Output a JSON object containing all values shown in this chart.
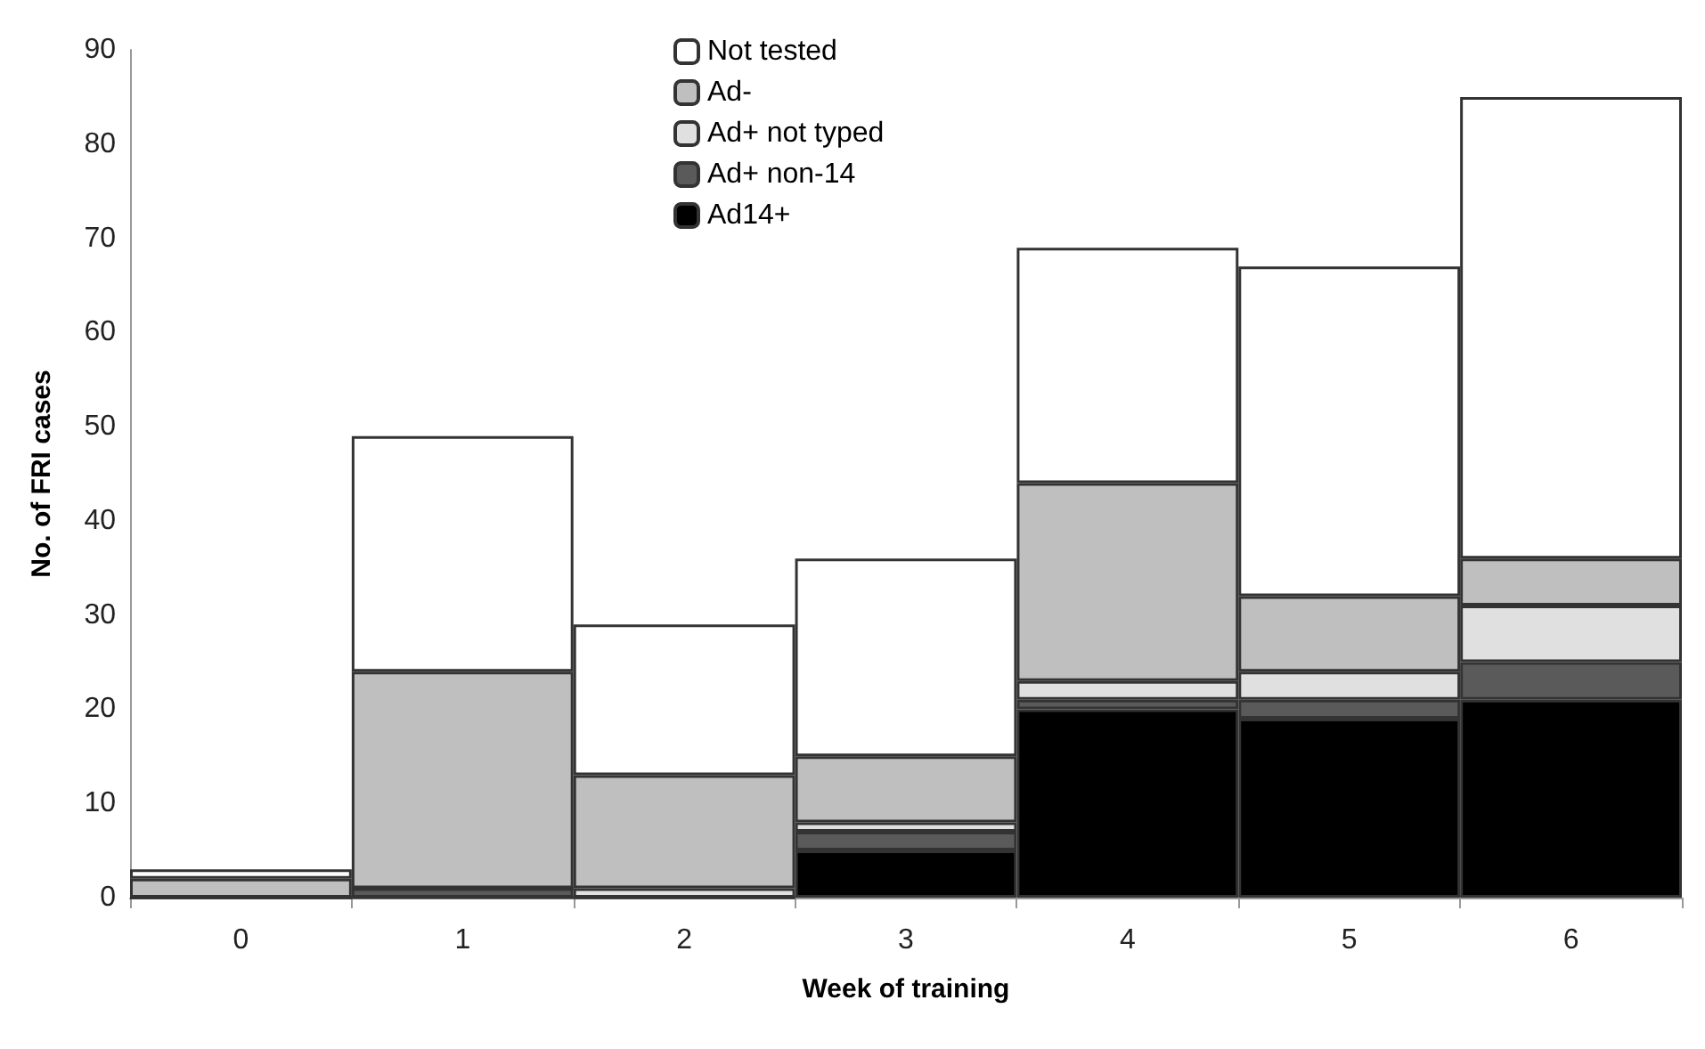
{
  "chart_data": {
    "type": "bar",
    "stacked": true,
    "xlabel": "Week of training",
    "ylabel": "No. of FRI cases",
    "categories": [
      "0",
      "1",
      "2",
      "3",
      "4",
      "5",
      "6"
    ],
    "series": [
      {
        "name": "Ad14+",
        "color": "#000000",
        "values": [
          0,
          0,
          0,
          5,
          20,
          19,
          21
        ]
      },
      {
        "name": "Ad+ non-14",
        "color": "#5a5a5a",
        "values": [
          0,
          1,
          0,
          2,
          1,
          2,
          4
        ]
      },
      {
        "name": "Ad+ not typed",
        "color": "#e0e0e0",
        "values": [
          0,
          0,
          1,
          1,
          2,
          3,
          6
        ]
      },
      {
        "name": "Ad-",
        "color": "#bfbfbf",
        "values": [
          2,
          23,
          12,
          7,
          21,
          8,
          5
        ]
      },
      {
        "name": "Not tested",
        "color": "#ffffff",
        "values": [
          1,
          25,
          16,
          21,
          25,
          35,
          49
        ]
      }
    ],
    "ylim": [
      0,
      90
    ],
    "yticks": [
      0,
      10,
      20,
      30,
      40,
      50,
      60,
      70,
      80,
      90
    ],
    "grid": false,
    "legend": "top"
  }
}
